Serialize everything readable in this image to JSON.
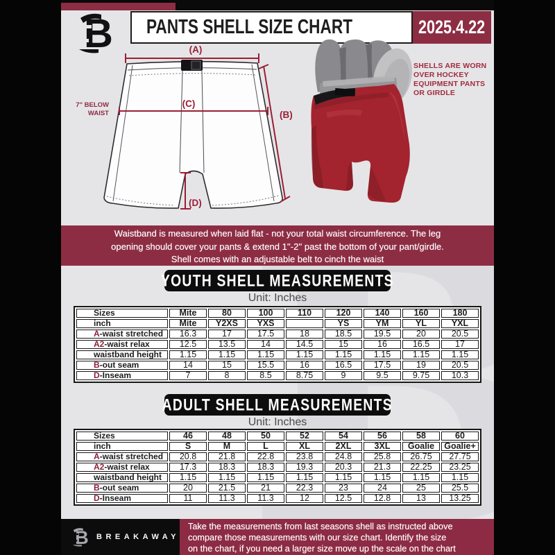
{
  "header": {
    "title": "PANTS SHELL SIZE CHART",
    "date": "2025.4.22"
  },
  "diagram": {
    "label_a": "(A)",
    "label_b": "(B)",
    "label_c": "(C)",
    "label_d": "(D)",
    "waist_note_line1": "7'' BELOW",
    "waist_note_line2": "WAIST",
    "photo_note_lines": [
      "SHELLS ARE WORN",
      "OVER HOCKEY",
      "EQUIPMENT PANTS",
      "OR GIRDLE"
    ]
  },
  "notice": {
    "lines": [
      "Waistband is measured when laid flat - not your total waist circumference. The leg",
      "opening should cover your pants & extend 1''-2'' past the bottom of your pant/girdle.",
      "Shell comes with an adjustable belt to cinch the waist"
    ]
  },
  "youth": {
    "title": "YOUTH SHELL MEASUREMENTS",
    "unit": "Unit: Inches",
    "table": {
      "rows": [
        {
          "prefix": "",
          "label": "Sizes",
          "bold": true,
          "values": [
            "Mite",
            "80",
            "100",
            "110",
            "120",
            "140",
            "160",
            "180"
          ]
        },
        {
          "prefix": "",
          "label": "inch",
          "bold": true,
          "values": [
            "Mite",
            "Y2XS",
            "YXS",
            "",
            "YS",
            "YM",
            "YL",
            "YXL"
          ]
        },
        {
          "prefix": "A",
          "label": "-waist stretched",
          "values": [
            "16.3",
            "17",
            "17.5",
            "18",
            "18.5",
            "19.5",
            "20",
            "20.5"
          ]
        },
        {
          "prefix": "A2",
          "label": "-waist relax",
          "values": [
            "12.5",
            "13.5",
            "14",
            "14.5",
            "15",
            "16",
            "16.5",
            "17"
          ]
        },
        {
          "prefix": "",
          "label": "waistband height",
          "values": [
            "1.15",
            "1.15",
            "1.15",
            "1.15",
            "1.15",
            "1.15",
            "1.15",
            "1.15"
          ]
        },
        {
          "prefix": "B",
          "label": "-out seam",
          "values": [
            "14",
            "15",
            "15.5",
            "16",
            "16.5",
            "17.5",
            "19",
            "20.5"
          ]
        },
        {
          "prefix": "D",
          "label": "-Inseam",
          "values": [
            "7",
            "8",
            "8.5",
            "8.75",
            "9",
            "9.5",
            "9.75",
            "10.3"
          ]
        }
      ]
    }
  },
  "adult": {
    "title": "ADULT SHELL MEASUREMENTS",
    "unit": "Unit: Inches",
    "table": {
      "rows": [
        {
          "prefix": "",
          "label": "Sizes",
          "bold": true,
          "values": [
            "46",
            "48",
            "50",
            "52",
            "54",
            "56",
            "58",
            "60"
          ]
        },
        {
          "prefix": "",
          "label": "inch",
          "bold": true,
          "values": [
            "S",
            "M",
            "L",
            "XL",
            "2XL",
            "3XL",
            "Goalie",
            "Goalie+"
          ]
        },
        {
          "prefix": "A",
          "label": "-waist stretched",
          "values": [
            "20.8",
            "21.8",
            "22.8",
            "23.8",
            "24.8",
            "25.8",
            "26.75",
            "27.75"
          ]
        },
        {
          "prefix": "A2",
          "label": "-waist relax",
          "values": [
            "17.3",
            "18.3",
            "18.3",
            "19.3",
            "20.3",
            "21.3",
            "22.25",
            "23.25"
          ]
        },
        {
          "prefix": "",
          "label": "waistband height",
          "values": [
            "1.15",
            "1.15",
            "1.15",
            "1.15",
            "1.15",
            "1.15",
            "1.15",
            "1.15"
          ]
        },
        {
          "prefix": "B",
          "label": "-out seam",
          "values": [
            "20",
            "21.5",
            "21",
            "22.3",
            "23",
            "24",
            "25",
            "25.5"
          ]
        },
        {
          "prefix": "D",
          "label": "-Inseam",
          "values": [
            "11",
            "11.3",
            "11.3",
            "12",
            "12.5",
            "12.8",
            "13",
            "13.25"
          ]
        }
      ]
    }
  },
  "footer": {
    "brand": "BREAKAWAY",
    "lines": [
      "Take the measurements from last seasons shell as instructed above",
      "compare those measurements  with our size chart. Identify the size",
      "on the chart, if you need a larger size move up the scale on the chart"
    ]
  },
  "colors": {
    "maroon_banner": "#8d2d44",
    "measurement_accent": "#9c1d36",
    "shell_red": "#a3242e",
    "page_background": "#e5e5e7",
    "frame_black": "#0a0a0a"
  }
}
